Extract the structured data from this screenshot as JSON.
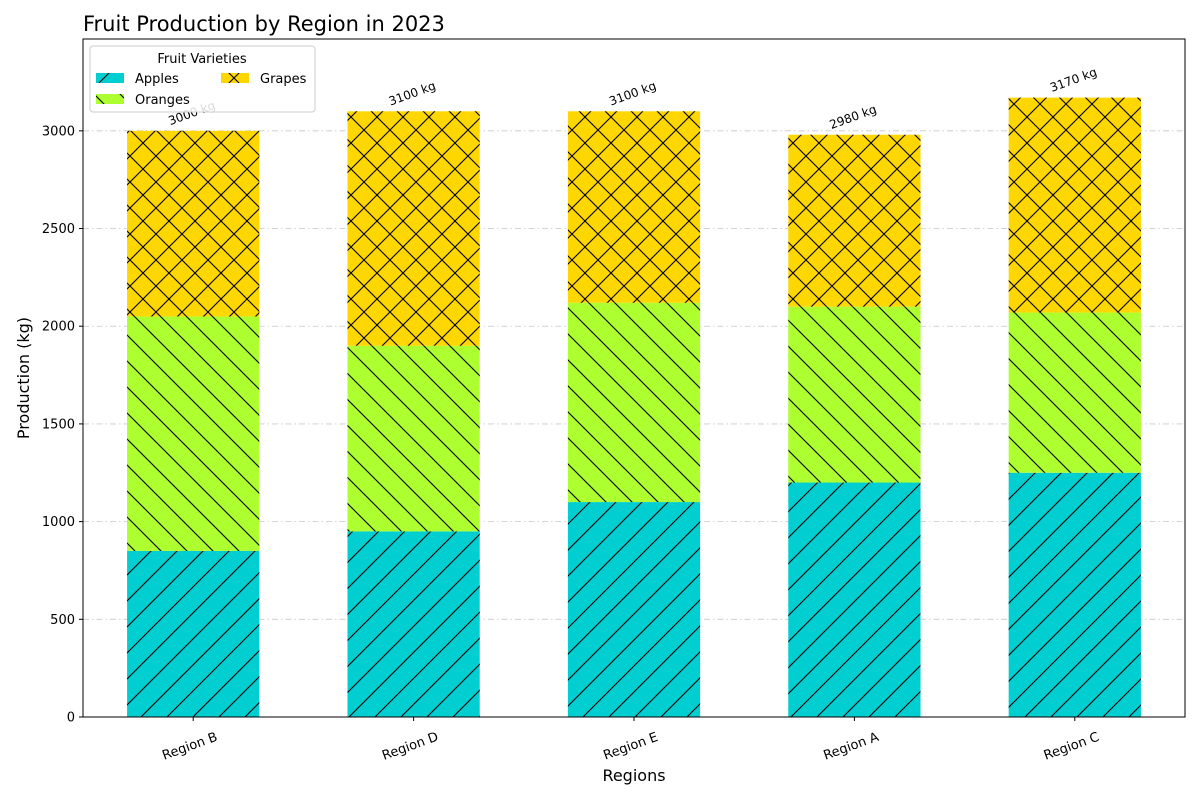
{
  "chart_data": {
    "type": "bar",
    "stacked": true,
    "title": "Fruit Production by Region in 2023",
    "xlabel": "Regions",
    "ylabel": "Production (kg)",
    "categories": [
      "Region B",
      "Region D",
      "Region E",
      "Region A",
      "Region C"
    ],
    "series": [
      {
        "name": "Apples",
        "values": [
          850,
          950,
          1100,
          1200,
          1250
        ],
        "color": "#00CED1",
        "hatch": "/"
      },
      {
        "name": "Oranges",
        "values": [
          1200,
          950,
          1020,
          900,
          820
        ],
        "color": "#ADFF2F",
        "hatch": "\\"
      },
      {
        "name": "Grapes",
        "values": [
          950,
          1200,
          980,
          880,
          1100
        ],
        "color": "#FFD700",
        "hatch": "x"
      }
    ],
    "totals": [
      "3000 kg",
      "3100 kg",
      "3100 kg",
      "2980 kg",
      "3170 kg"
    ],
    "ylim": [
      0,
      3470
    ],
    "yticks": [
      0,
      500,
      1000,
      1500,
      2000,
      2500,
      3000
    ],
    "grid": true,
    "legend": {
      "title": "Fruit Varieties",
      "placement": "upper-left"
    }
  }
}
